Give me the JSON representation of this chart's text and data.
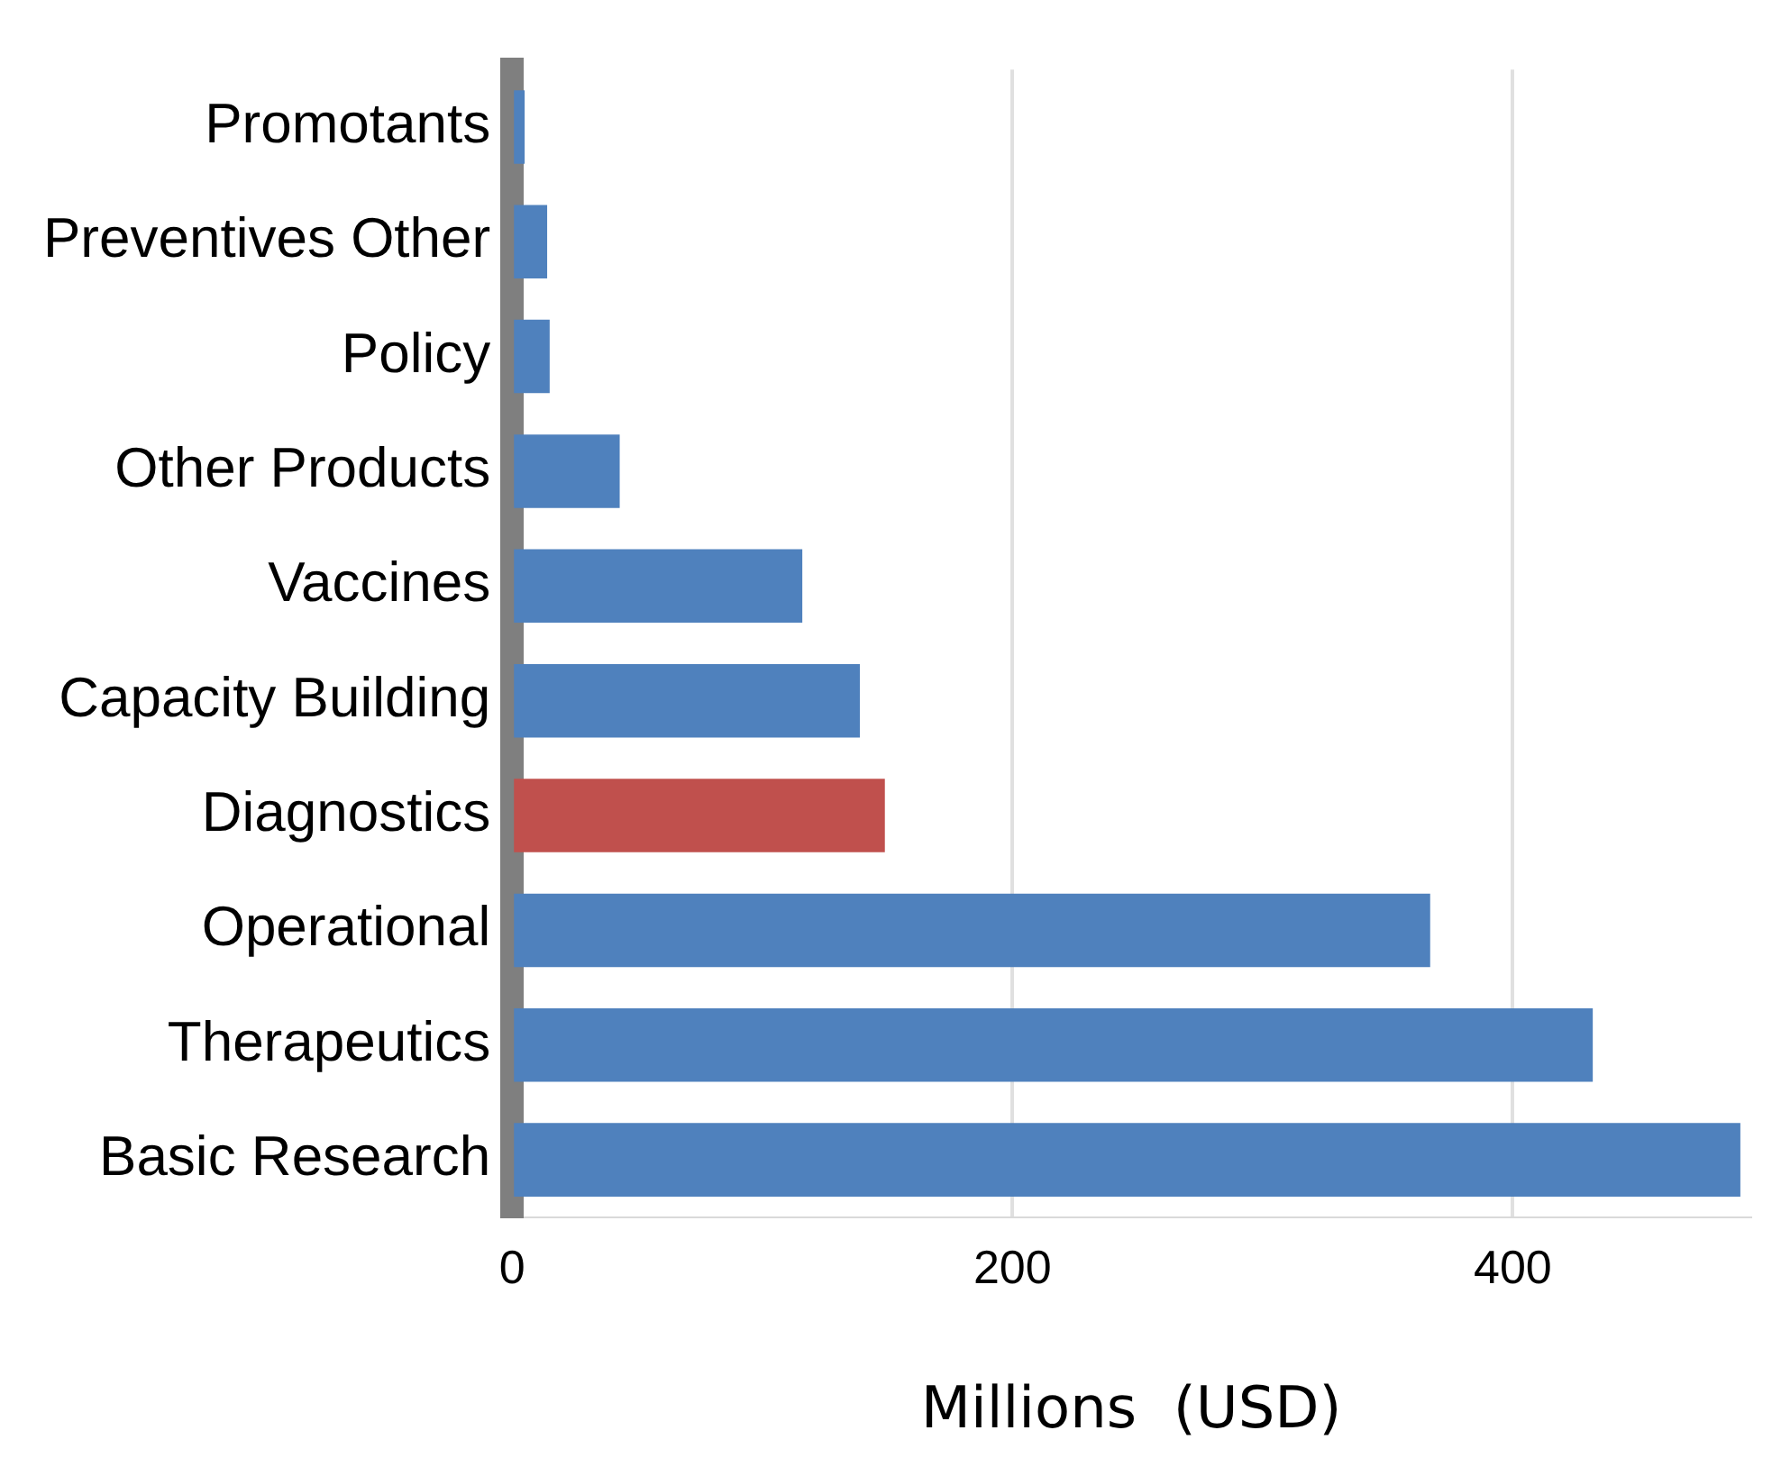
{
  "chart_data": {
    "type": "bar",
    "orientation": "horizontal",
    "xlabel": "Millions  (USD)",
    "categories": [
      "Promotants",
      "Preventives Other",
      "Policy",
      "Other Products",
      "Vaccines",
      "Capacity Building",
      "Diagnostics",
      "Operational",
      "Therapeutics",
      "Basic Research"
    ],
    "values": [
      5,
      14,
      15,
      43,
      116,
      139,
      149,
      367,
      432,
      491
    ],
    "colors": [
      "#4f81bd",
      "#4f81bd",
      "#4f81bd",
      "#4f81bd",
      "#4f81bd",
      "#4f81bd",
      "#c0504d",
      "#4f81bd",
      "#4f81bd",
      "#4f81bd"
    ],
    "xlim": [
      0,
      495
    ],
    "xticks": [
      0,
      200,
      400
    ],
    "grid": "x",
    "legend": false
  }
}
